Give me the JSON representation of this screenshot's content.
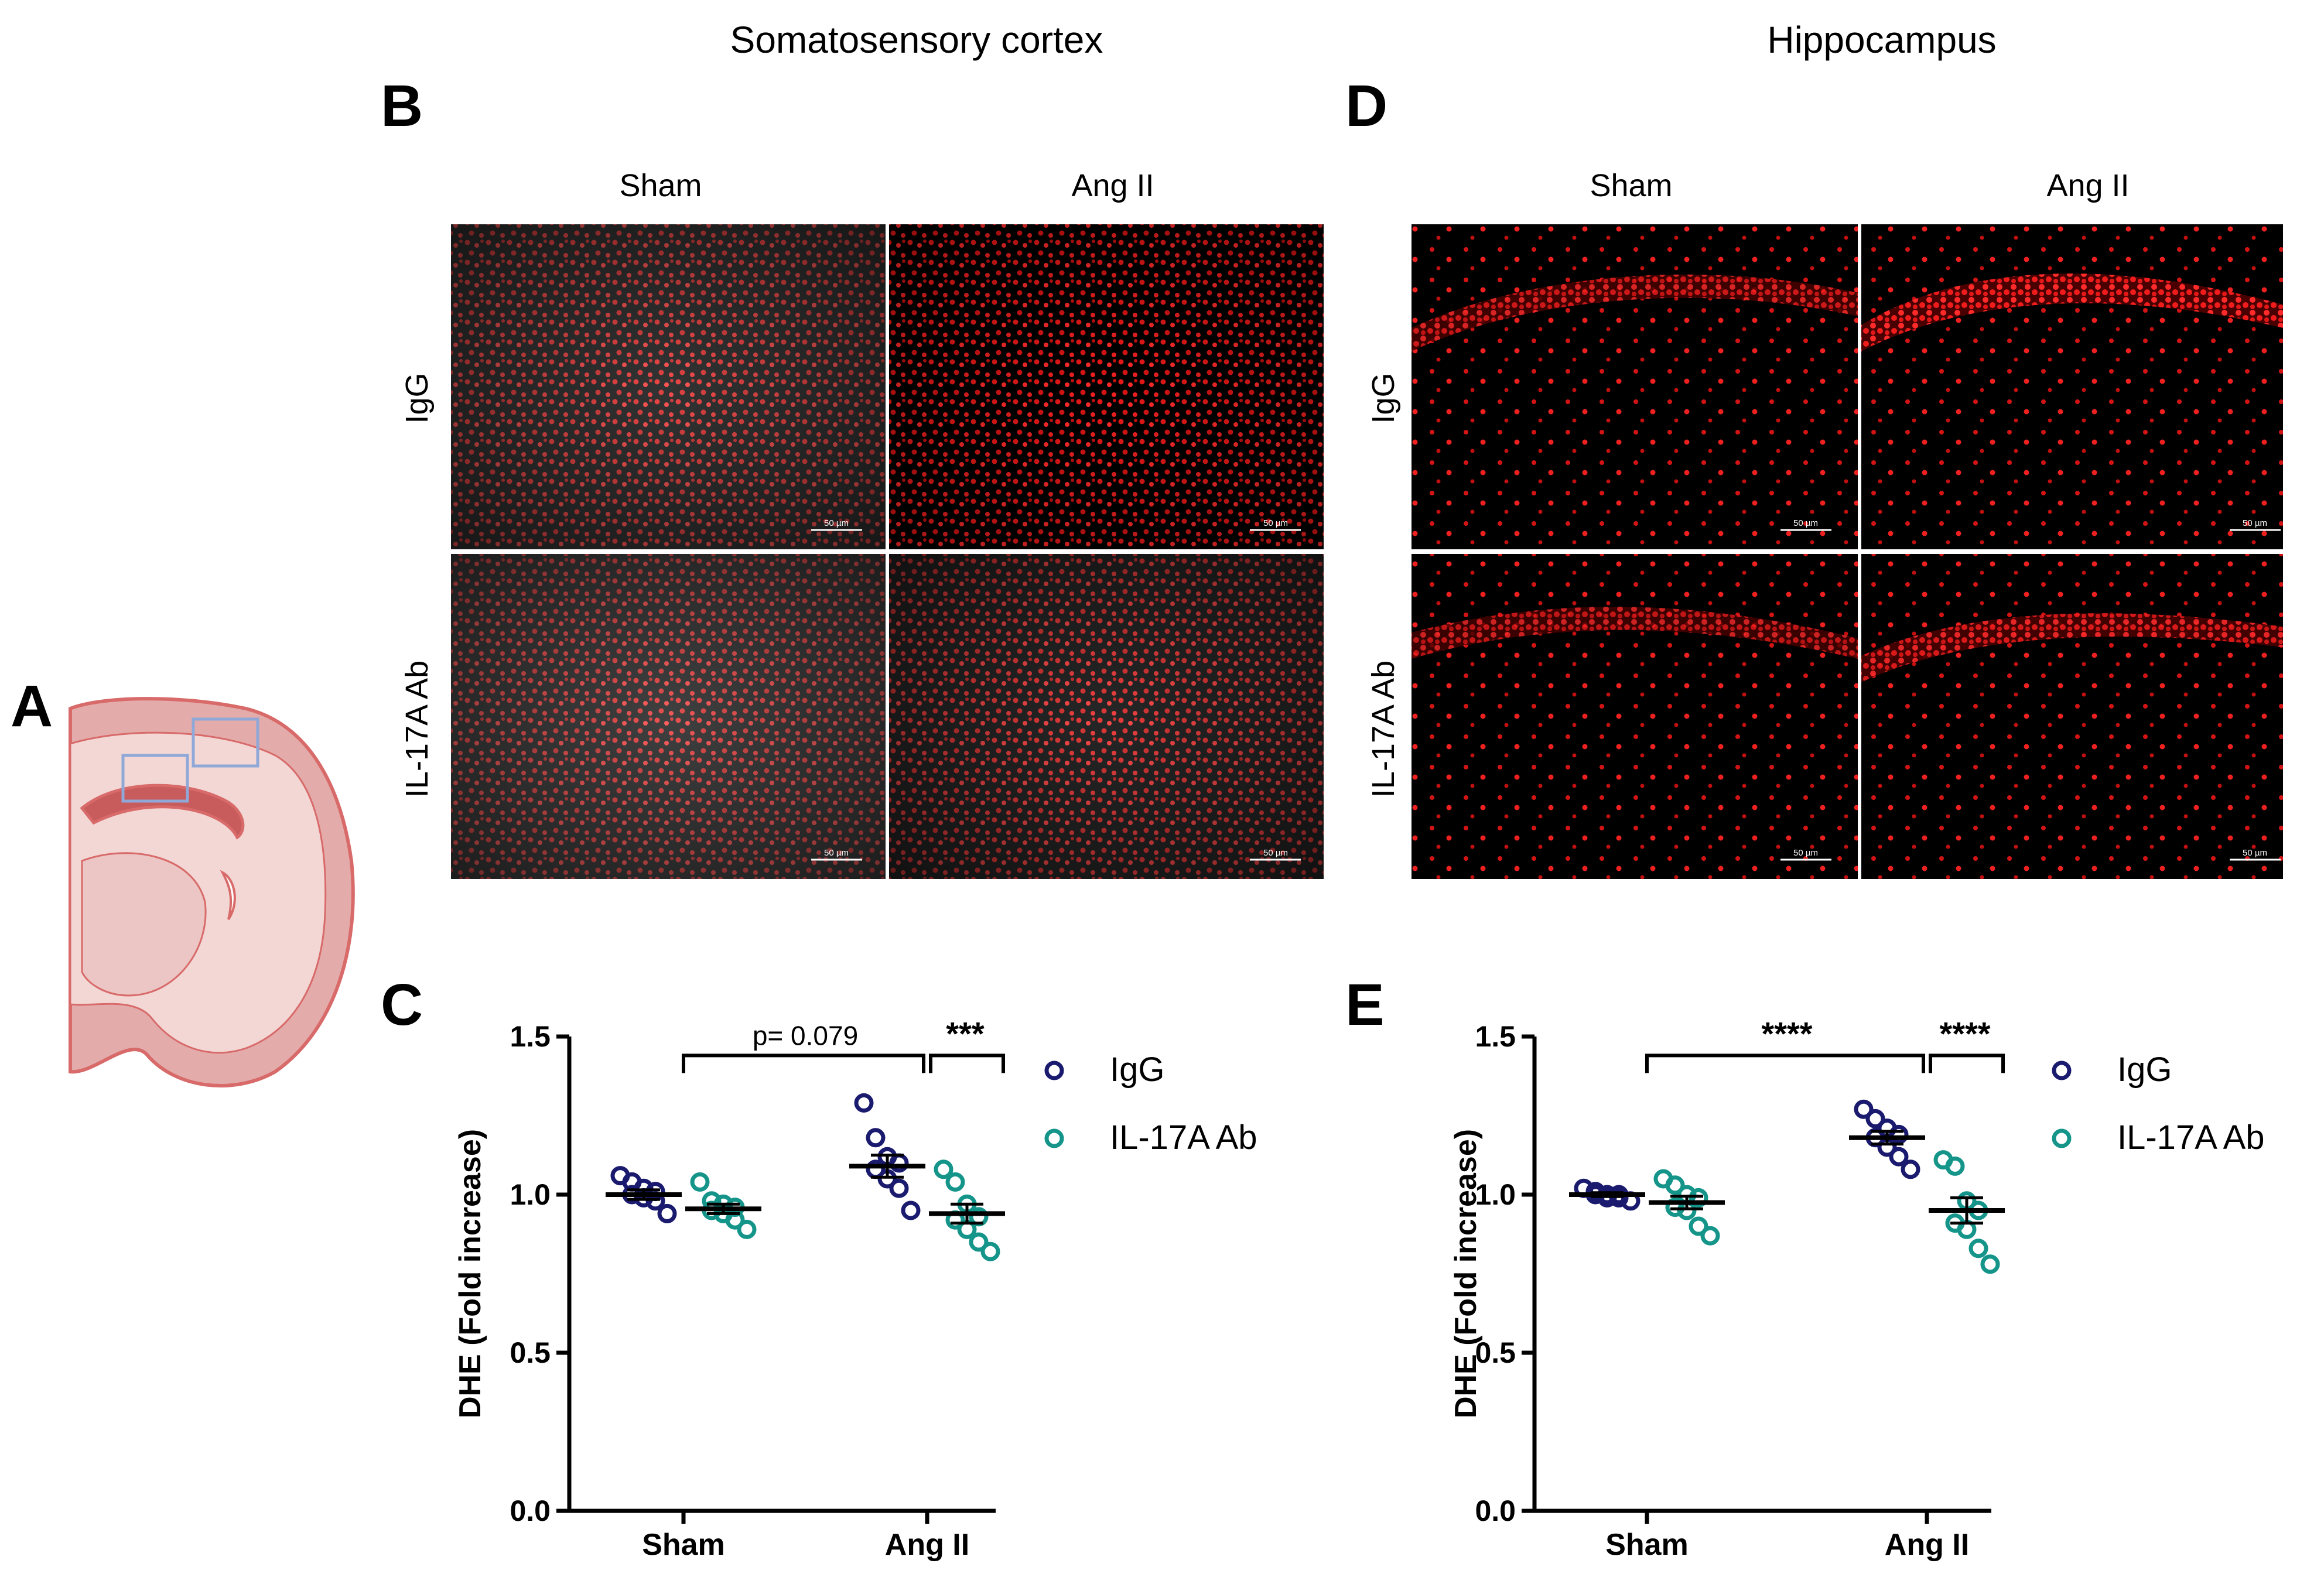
{
  "panels": {
    "A": "A",
    "B": "B",
    "C": "C",
    "D": "D",
    "E": "E"
  },
  "regions": {
    "cortex": "Somatosensory cortex",
    "hippocampus": "Hippocampus"
  },
  "micrographs": {
    "col_labels": [
      "Sham",
      "Ang II"
    ],
    "row_labels": [
      "IgG",
      "IL-17A Ab"
    ],
    "scale_bar": "50 µm",
    "stain_color": "#ff2222"
  },
  "colors": {
    "igg": "#1a1a6e",
    "il17a": "#15958a",
    "brain_fill": "#e3acaa",
    "brain_light": "#f2d7d5",
    "brain_outline": "#d86a6a",
    "roi_box": "#8fa8d8"
  },
  "chart_data": [
    {
      "type": "scatter",
      "panel": "C",
      "ylabel": "DHE (Fold increase)",
      "ylim": [
        0.0,
        1.5
      ],
      "yticks": [
        0.0,
        0.5,
        1.0,
        1.5
      ],
      "ytick_labels": [
        "0.0",
        "0.5",
        "1.0",
        "1.5"
      ],
      "categories": [
        "Sham",
        "Ang II"
      ],
      "series": [
        {
          "name": "IgG",
          "color": "#1a1a6e",
          "points": [
            [
              1.06,
              1.04,
              1.02,
              1.01,
              1.0,
              0.99,
              0.98,
              0.94
            ],
            [
              1.29,
              1.18,
              1.12,
              1.1,
              1.08,
              1.05,
              1.02,
              0.95
            ]
          ],
          "mean": [
            1.0,
            1.09
          ],
          "sem": [
            0.015,
            0.035
          ]
        },
        {
          "name": "IL-17A Ab",
          "color": "#15958a",
          "points": [
            [
              1.04,
              0.98,
              0.97,
              0.96,
              0.95,
              0.94,
              0.92,
              0.89
            ],
            [
              1.08,
              1.04,
              0.97,
              0.93,
              0.92,
              0.89,
              0.85,
              0.82
            ]
          ],
          "mean": [
            0.955,
            0.94
          ],
          "sem": [
            0.015,
            0.03
          ]
        }
      ],
      "significance": [
        {
          "label": "p= 0.079",
          "y": 1.44,
          "kind": "text"
        },
        {
          "label": "***",
          "y": 1.44,
          "kind": "star"
        }
      ]
    },
    {
      "type": "scatter",
      "panel": "E",
      "ylabel": "DHE (Fold increase)",
      "ylim": [
        0.0,
        1.5
      ],
      "yticks": [
        0.0,
        0.5,
        1.0,
        1.5
      ],
      "ytick_labels": [
        "0.0",
        "0.5",
        "1.0",
        "1.5"
      ],
      "categories": [
        "Sham",
        "Ang II"
      ],
      "series": [
        {
          "name": "IgG",
          "color": "#1a1a6e",
          "points": [
            [
              1.02,
              1.01,
              1.0,
              1.0,
              1.0,
              0.99,
              0.99,
              0.98
            ],
            [
              1.27,
              1.24,
              1.21,
              1.19,
              1.18,
              1.15,
              1.12,
              1.08
            ]
          ],
          "mean": [
            1.0,
            1.18
          ],
          "sem": [
            0.006,
            0.02
          ]
        },
        {
          "name": "IL-17A Ab",
          "color": "#15958a",
          "points": [
            [
              1.05,
              1.03,
              1.0,
              0.99,
              0.96,
              0.95,
              0.9,
              0.87
            ],
            [
              1.11,
              1.09,
              0.98,
              0.95,
              0.91,
              0.89,
              0.83,
              0.78
            ]
          ],
          "mean": [
            0.975,
            0.95
          ],
          "sem": [
            0.02,
            0.04
          ]
        }
      ],
      "significance": [
        {
          "label": "****",
          "y": 1.44,
          "kind": "star"
        },
        {
          "label": "****",
          "y": 1.44,
          "kind": "star"
        }
      ]
    }
  ],
  "legend": {
    "items": [
      {
        "name": "IgG",
        "color": "#1a1a6e"
      },
      {
        "name": "IL-17A Ab",
        "color": "#15958a"
      }
    ]
  }
}
